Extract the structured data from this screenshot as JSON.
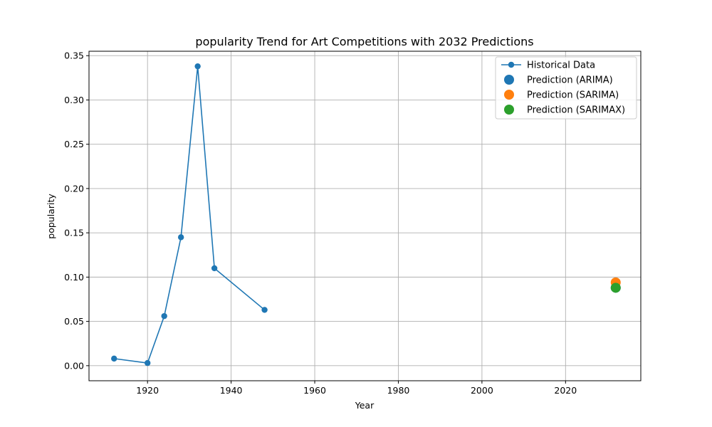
{
  "chart_data": {
    "type": "line",
    "title": "popularity Trend for Art Competitions with 2032 Predictions",
    "xlabel": "Year",
    "ylabel": "popularity",
    "xlim": [
      1906,
      2038
    ],
    "ylim": [
      -0.017,
      0.355
    ],
    "xticks": [
      1920,
      1940,
      1960,
      1980,
      2000,
      2020
    ],
    "yticks": [
      0.0,
      0.05,
      0.1,
      0.15,
      0.2,
      0.25,
      0.3,
      0.35
    ],
    "grid": true,
    "legend_position": "top-right",
    "series": [
      {
        "name": "Historical Data",
        "kind": "line-markers",
        "color": "#1f77b4",
        "x": [
          1912,
          1920,
          1924,
          1928,
          1932,
          1936,
          1948
        ],
        "y": [
          0.008,
          0.003,
          0.056,
          0.145,
          0.338,
          0.11,
          0.063
        ]
      },
      {
        "name": "Prediction (ARIMA)",
        "kind": "scatter",
        "color": "#1f77b4",
        "x": [
          2032
        ],
        "y": [
          0.088
        ]
      },
      {
        "name": "Prediction (SARIMA)",
        "kind": "scatter",
        "color": "#ff7f0e",
        "x": [
          2032
        ],
        "y": [
          0.094
        ]
      },
      {
        "name": "Prediction (SARIMAX)",
        "kind": "scatter",
        "color": "#2ca02c",
        "x": [
          2032
        ],
        "y": [
          0.088
        ]
      }
    ]
  }
}
